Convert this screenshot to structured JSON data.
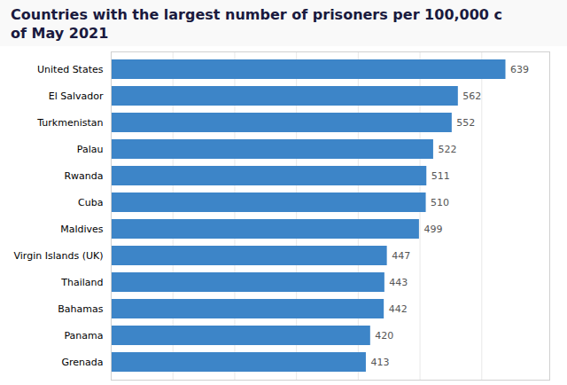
{
  "chart_data": {
    "type": "bar",
    "orientation": "horizontal",
    "title": "Countries with the largest number of prisoners per 100,000 c\nof May 2021",
    "categories": [
      "United States",
      "El Salvador",
      "Turkmenistan",
      "Palau",
      "Rwanda",
      "Cuba",
      "Maldives",
      "Virgin Islands (UK)",
      "Thailand",
      "Bahamas",
      "Panama",
      "Grenada"
    ],
    "values": [
      639,
      562,
      552,
      522,
      511,
      510,
      499,
      447,
      443,
      442,
      420,
      413
    ],
    "color": "#3d85c8",
    "xlim": [
      0,
      710
    ],
    "xticks": [
      100,
      200,
      300,
      400,
      500,
      600
    ],
    "grid": true,
    "data_labels": true,
    "tick_labels": "y"
  }
}
